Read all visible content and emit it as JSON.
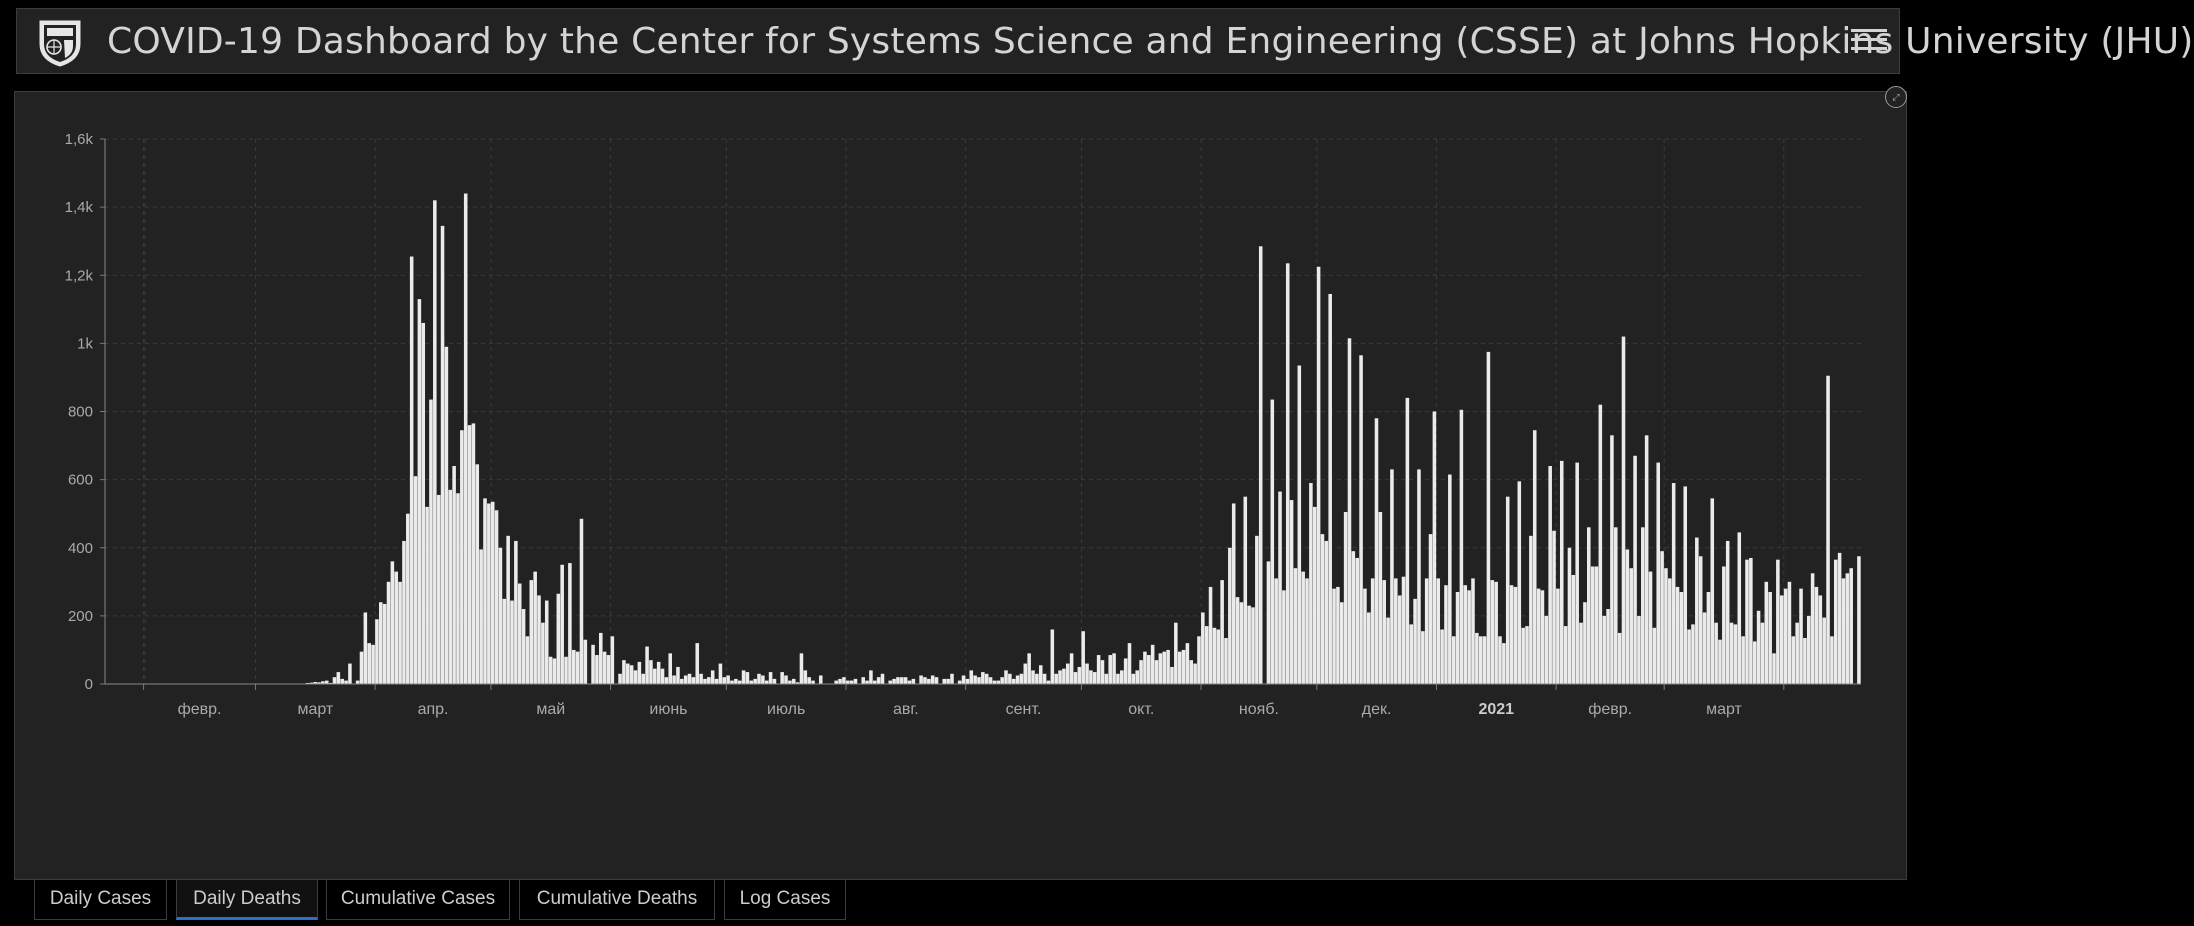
{
  "header": {
    "title": "COVID-19 Dashboard by the Center for Systems Science and Engineering (CSSE) at Johns Hopkins University (JHU)",
    "logo_icon": "jhu-shield-icon",
    "menu_icon": "hamburger-menu-icon"
  },
  "tabs": [
    {
      "label": "Daily Cases",
      "active": false
    },
    {
      "label": "Daily Deaths",
      "active": true
    },
    {
      "label": "Cumulative Cases",
      "active": false
    },
    {
      "label": "Cumulative Deaths",
      "active": false
    },
    {
      "label": "Log Cases",
      "active": false
    }
  ],
  "colors": {
    "bar": "#ebebeb",
    "accent": "#2c6fd1",
    "background": "#222222"
  },
  "chart_data": {
    "type": "bar",
    "title": "",
    "xlabel": "",
    "ylabel": "",
    "ylim": [
      0,
      1600
    ],
    "y_ticks": [
      {
        "value": 0,
        "label": "0"
      },
      {
        "value": 200,
        "label": "200"
      },
      {
        "value": 400,
        "label": "400"
      },
      {
        "value": 600,
        "label": "600"
      },
      {
        "value": 800,
        "label": "800"
      },
      {
        "value": 1000,
        "label": "1k"
      },
      {
        "value": 1200,
        "label": "1,2k"
      },
      {
        "value": 1400,
        "label": "1,4k"
      },
      {
        "value": 1600,
        "label": "1,6k"
      }
    ],
    "x_ticks": [
      {
        "label": "февр.",
        "bold": false
      },
      {
        "label": "март",
        "bold": false
      },
      {
        "label": "апр.",
        "bold": false
      },
      {
        "label": "май",
        "bold": false
      },
      {
        "label": "июнь",
        "bold": false
      },
      {
        "label": "июль",
        "bold": false
      },
      {
        "label": "авг.",
        "bold": false
      },
      {
        "label": "сент.",
        "bold": false
      },
      {
        "label": "окт.",
        "bold": false
      },
      {
        "label": "нояб.",
        "bold": false
      },
      {
        "label": "дек.",
        "bold": false
      },
      {
        "label": "2021",
        "bold": true
      },
      {
        "label": "февр.",
        "bold": false
      },
      {
        "label": "март",
        "bold": false
      }
    ],
    "grid": true,
    "start_date": "2020-01-22",
    "values": [
      0,
      0,
      0,
      0,
      0,
      0,
      0,
      0,
      0,
      0,
      0,
      0,
      0,
      0,
      0,
      0,
      0,
      0,
      0,
      0,
      0,
      0,
      0,
      0,
      0,
      0,
      0,
      0,
      0,
      0,
      0,
      0,
      0,
      0,
      0,
      0,
      0,
      0,
      0,
      0,
      0,
      0,
      0,
      0,
      0,
      0,
      0,
      0,
      0,
      0,
      0,
      0,
      3,
      4,
      6,
      5,
      8,
      10,
      3,
      20,
      35,
      15,
      10,
      60,
      0,
      10,
      95,
      210,
      120,
      115,
      190,
      240,
      235,
      300,
      360,
      330,
      300,
      420,
      500,
      1255,
      610,
      1130,
      1060,
      520,
      835,
      1420,
      555,
      1345,
      990,
      570,
      640,
      560,
      745,
      1440,
      760,
      765,
      645,
      395,
      545,
      530,
      535,
      510,
      400,
      250,
      435,
      245,
      420,
      295,
      220,
      140,
      305,
      330,
      260,
      180,
      245,
      80,
      75,
      265,
      350,
      80,
      355,
      100,
      95,
      485,
      130,
      0,
      115,
      85,
      150,
      95,
      85,
      140,
      0,
      30,
      70,
      60,
      55,
      40,
      65,
      30,
      110,
      70,
      45,
      65,
      45,
      20,
      90,
      25,
      50,
      15,
      25,
      30,
      20,
      120,
      30,
      15,
      20,
      40,
      15,
      60,
      20,
      25,
      10,
      15,
      10,
      40,
      35,
      10,
      15,
      30,
      25,
      10,
      35,
      15,
      0,
      35,
      25,
      10,
      15,
      5,
      90,
      40,
      20,
      10,
      0,
      25,
      0,
      0,
      0,
      10,
      15,
      20,
      10,
      10,
      15,
      0,
      20,
      10,
      40,
      10,
      20,
      30,
      0,
      10,
      15,
      20,
      20,
      20,
      10,
      15,
      0,
      25,
      20,
      15,
      25,
      20,
      0,
      15,
      15,
      30,
      0,
      10,
      25,
      15,
      40,
      25,
      20,
      35,
      30,
      20,
      10,
      10,
      20,
      40,
      30,
      15,
      25,
      30,
      60,
      90,
      40,
      30,
      55,
      30,
      10,
      160,
      30,
      40,
      45,
      60,
      90,
      35,
      50,
      155,
      60,
      40,
      35,
      85,
      70,
      30,
      85,
      90,
      30,
      40,
      75,
      120,
      30,
      40,
      70,
      95,
      85,
      115,
      70,
      90,
      95,
      100,
      50,
      180,
      95,
      100,
      120,
      70,
      60,
      140,
      210,
      170,
      285,
      165,
      160,
      305,
      135,
      400,
      530,
      255,
      240,
      550,
      230,
      225,
      435,
      1285,
      0,
      360,
      835,
      310,
      565,
      275,
      1235,
      540,
      340,
      935,
      330,
      310,
      590,
      520,
      1225,
      440,
      420,
      1145,
      280,
      285,
      240,
      505,
      1015,
      390,
      370,
      965,
      280,
      210,
      310,
      780,
      505,
      305,
      195,
      630,
      310,
      260,
      315,
      840,
      175,
      250,
      630,
      155,
      310,
      440,
      800,
      310,
      160,
      290,
      615,
      140,
      270,
      805,
      290,
      275,
      310,
      150,
      140,
      140,
      975,
      305,
      300,
      140,
      120,
      550,
      290,
      285,
      595,
      165,
      170,
      435,
      745,
      280,
      275,
      200,
      640,
      450,
      280,
      655,
      170,
      400,
      320,
      650,
      180,
      240,
      460,
      345,
      345,
      820,
      200,
      220,
      730,
      460,
      150,
      1020,
      395,
      340,
      670,
      200,
      460,
      730,
      330,
      165,
      650,
      390,
      340,
      310,
      590,
      285,
      270,
      580,
      160,
      175,
      430,
      375,
      210,
      270,
      545,
      180,
      130,
      345,
      420,
      180,
      175,
      445,
      140,
      365,
      370,
      125,
      215,
      180,
      300,
      270,
      90,
      365,
      260,
      280,
      300,
      140,
      180,
      280,
      135,
      200,
      325,
      285,
      260,
      195,
      905,
      140,
      365,
      385,
      310,
      325,
      340,
      0,
      375
    ]
  }
}
